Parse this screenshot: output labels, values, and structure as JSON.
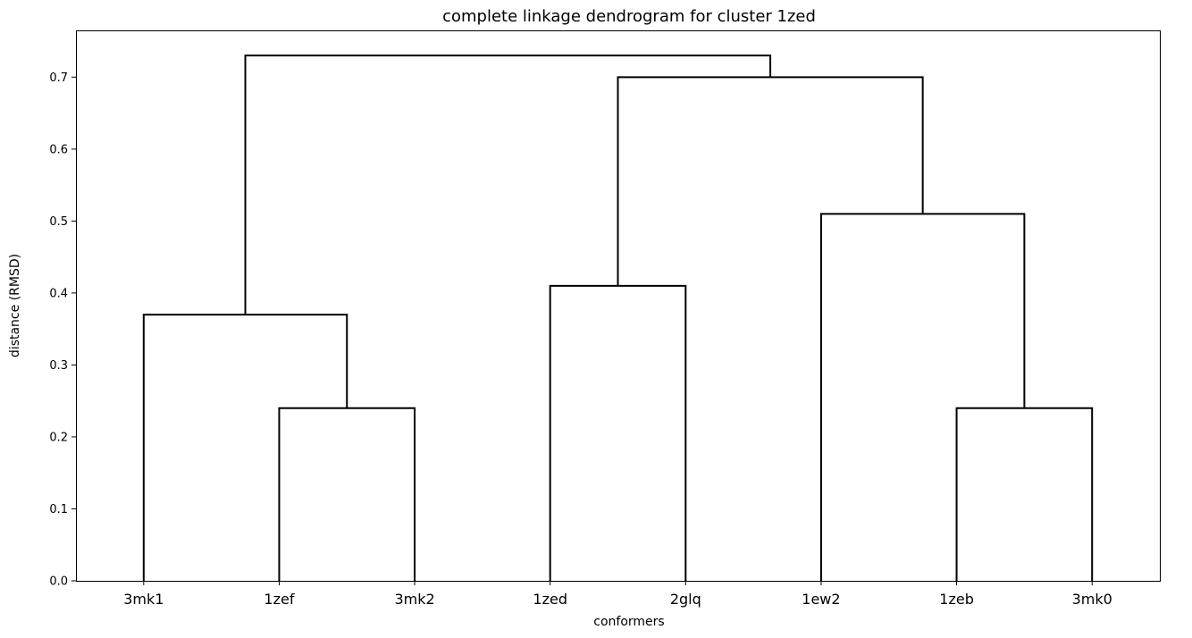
{
  "chart_data": {
    "type": "dendrogram",
    "title": "complete linkage dendrogram for cluster 1zed",
    "xlabel": "conformers",
    "ylabel": "distance (RMSD)",
    "leaves": [
      "3mk1",
      "1zef",
      "3mk2",
      "1zed",
      "2glq",
      "1ew2",
      "1zeb",
      "3mk0"
    ],
    "ylim": [
      0,
      0.765
    ],
    "yticks": [
      "0.0",
      "0.1",
      "0.2",
      "0.3",
      "0.4",
      "0.5",
      "0.6",
      "0.7"
    ],
    "ytick_values": [
      0,
      0.1,
      0.2,
      0.3,
      0.4,
      0.5,
      0.6,
      0.7
    ],
    "grid": false,
    "merges": [
      {
        "left": "1zef",
        "right": "3mk2",
        "height": 0.24
      },
      {
        "left": "1zeb",
        "right": "3mk0",
        "height": 0.24
      },
      {
        "left": "3mk1",
        "right": "(1zef,3mk2)",
        "height": 0.37
      },
      {
        "left": "1zed",
        "right": "2glq",
        "height": 0.41
      },
      {
        "left": "1ew2",
        "right": "(1zeb,3mk0)",
        "height": 0.51
      },
      {
        "left": "(1zed,2glq)",
        "right": "(1ew2,(1zeb,3mk0))",
        "height": 0.7
      },
      {
        "left": "(3mk1,(1zef,3mk2))",
        "right": "((1zed,2glq),(1ew2,(1zeb,3mk0)))",
        "height": 0.73
      }
    ],
    "color": "#000000"
  }
}
